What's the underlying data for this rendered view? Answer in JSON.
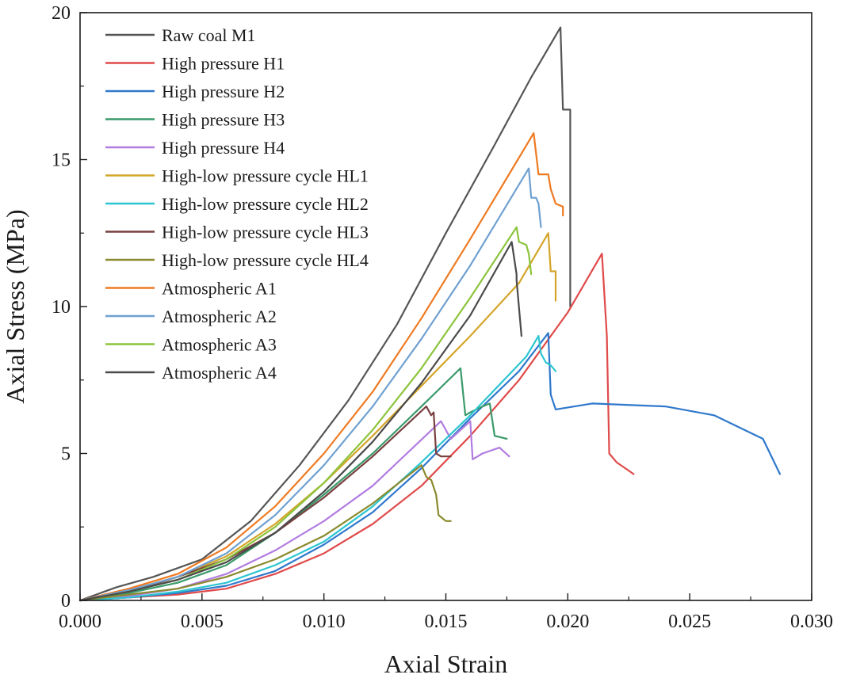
{
  "chart_data": {
    "type": "line",
    "title": "",
    "xlabel": "Axial Strain",
    "ylabel": "Axial Stress (MPa)",
    "xlim": [
      0.0,
      0.03
    ],
    "ylim": [
      0,
      20
    ],
    "x_ticks": [
      0.0,
      0.005,
      0.01,
      0.015,
      0.02,
      0.025,
      0.03
    ],
    "x_tick_labels": [
      "0.000",
      "0.005",
      "0.010",
      "0.015",
      "0.020",
      "0.025",
      "0.030"
    ],
    "y_ticks": [
      0,
      5,
      10,
      15,
      20
    ],
    "y_tick_labels": [
      "0",
      "5",
      "10",
      "15",
      "20"
    ],
    "grid": false,
    "legend_position": "top-left",
    "series": [
      {
        "name": "Raw coal M1",
        "color": "#555555",
        "x": [
          0,
          0.0015,
          0.003,
          0.005,
          0.007,
          0.009,
          0.011,
          0.013,
          0.015,
          0.017,
          0.0185,
          0.0197,
          0.0198,
          0.0198,
          0.0201,
          0.0201
        ],
        "y": [
          0,
          0.45,
          0.8,
          1.4,
          2.7,
          4.6,
          6.8,
          9.4,
          12.5,
          15.5,
          17.8,
          19.5,
          16.7,
          16.7,
          16.7,
          10.0
        ]
      },
      {
        "name": "High pressure H1",
        "color": "#e04a4a",
        "x": [
          0,
          0.002,
          0.004,
          0.006,
          0.008,
          0.01,
          0.012,
          0.014,
          0.016,
          0.018,
          0.02,
          0.0214,
          0.0216,
          0.0217,
          0.022,
          0.0227
        ],
        "y": [
          0,
          0.1,
          0.2,
          0.4,
          0.9,
          1.6,
          2.6,
          3.9,
          5.6,
          7.5,
          9.8,
          11.8,
          9.0,
          5.0,
          4.7,
          4.3
        ]
      },
      {
        "name": "High pressure H2",
        "color": "#2f78cc",
        "x": [
          0,
          0.002,
          0.004,
          0.006,
          0.008,
          0.01,
          0.012,
          0.014,
          0.016,
          0.018,
          0.0192,
          0.0193,
          0.0195,
          0.021,
          0.024,
          0.026,
          0.028,
          0.0287
        ],
        "y": [
          0,
          0.1,
          0.25,
          0.5,
          1.0,
          1.9,
          3.0,
          4.5,
          6.2,
          7.8,
          9.1,
          7.0,
          6.5,
          6.7,
          6.6,
          6.3,
          5.5,
          4.3
        ]
      },
      {
        "name": "High pressure H3",
        "color": "#3a9a6a",
        "x": [
          0,
          0.002,
          0.004,
          0.006,
          0.008,
          0.01,
          0.012,
          0.014,
          0.0156,
          0.0158,
          0.016,
          0.0165,
          0.0168,
          0.017,
          0.0175
        ],
        "y": [
          0,
          0.25,
          0.6,
          1.2,
          2.3,
          3.6,
          5.0,
          6.6,
          7.9,
          6.3,
          6.4,
          6.6,
          6.7,
          5.6,
          5.5
        ]
      },
      {
        "name": "High pressure H4",
        "color": "#b17ce0",
        "x": [
          0,
          0.002,
          0.004,
          0.006,
          0.008,
          0.01,
          0.012,
          0.0148,
          0.0152,
          0.016,
          0.0161,
          0.0165,
          0.0172,
          0.0176
        ],
        "y": [
          0,
          0.15,
          0.4,
          0.9,
          1.7,
          2.7,
          3.9,
          6.1,
          5.5,
          6.1,
          4.8,
          5.0,
          5.2,
          4.9
        ]
      },
      {
        "name": "High-low pressure cycle HL1",
        "color": "#d4a52a",
        "x": [
          0,
          0.002,
          0.004,
          0.006,
          0.008,
          0.01,
          0.012,
          0.014,
          0.016,
          0.018,
          0.0192,
          0.0193,
          0.0195,
          0.0195
        ],
        "y": [
          0,
          0.35,
          0.8,
          1.5,
          2.6,
          4.0,
          5.6,
          7.3,
          9.0,
          10.8,
          12.5,
          11.2,
          11.2,
          10.2
        ]
      },
      {
        "name": "High-low pressure cycle HL2",
        "color": "#2cc6d0",
        "x": [
          0,
          0.002,
          0.004,
          0.006,
          0.008,
          0.01,
          0.012,
          0.014,
          0.016,
          0.0183,
          0.0188,
          0.0189,
          0.0191,
          0.0193,
          0.0195
        ],
        "y": [
          0,
          0.1,
          0.3,
          0.6,
          1.2,
          2.0,
          3.2,
          4.7,
          6.3,
          8.3,
          9.0,
          8.4,
          8.1,
          8.0,
          7.8
        ]
      },
      {
        "name": "High-low pressure cycle HL3",
        "color": "#7a4040",
        "x": [
          0,
          0.002,
          0.004,
          0.006,
          0.008,
          0.01,
          0.012,
          0.0142,
          0.0144,
          0.0145,
          0.0146,
          0.0148,
          0.0152
        ],
        "y": [
          0,
          0.3,
          0.8,
          1.4,
          2.3,
          3.5,
          4.9,
          6.6,
          6.3,
          6.4,
          5.0,
          4.9,
          4.9
        ]
      },
      {
        "name": "High-low pressure cycle HL4",
        "color": "#8a8a2e",
        "x": [
          0,
          0.002,
          0.004,
          0.006,
          0.008,
          0.01,
          0.012,
          0.014,
          0.0142,
          0.0144,
          0.0146,
          0.0147,
          0.015,
          0.0152
        ],
        "y": [
          0,
          0.2,
          0.4,
          0.8,
          1.4,
          2.2,
          3.3,
          4.6,
          4.2,
          4.1,
          3.6,
          2.9,
          2.7,
          2.7
        ]
      },
      {
        "name": "Atmospheric A1",
        "color": "#ee7a22",
        "x": [
          0,
          0.002,
          0.004,
          0.006,
          0.008,
          0.01,
          0.012,
          0.014,
          0.016,
          0.0186,
          0.0188,
          0.0192,
          0.0193,
          0.0195,
          0.0198,
          0.0198
        ],
        "y": [
          0,
          0.4,
          0.9,
          1.8,
          3.2,
          5.0,
          7.1,
          9.6,
          12.3,
          15.9,
          14.5,
          14.5,
          14.0,
          13.5,
          13.4,
          13.1
        ]
      },
      {
        "name": "Atmospheric A2",
        "color": "#6fa0d0",
        "x": [
          0,
          0.002,
          0.004,
          0.006,
          0.008,
          0.01,
          0.012,
          0.014,
          0.016,
          0.0184,
          0.0185,
          0.0187,
          0.0188,
          0.0189
        ],
        "y": [
          0,
          0.35,
          0.8,
          1.6,
          2.9,
          4.6,
          6.6,
          8.9,
          11.4,
          14.7,
          13.7,
          13.7,
          13.5,
          12.7
        ]
      },
      {
        "name": "Atmospheric A3",
        "color": "#8cc43c",
        "x": [
          0,
          0.002,
          0.004,
          0.006,
          0.008,
          0.01,
          0.012,
          0.014,
          0.016,
          0.0179,
          0.018,
          0.0183,
          0.0184,
          0.0185
        ],
        "y": [
          0,
          0.3,
          0.7,
          1.4,
          2.5,
          4.0,
          5.8,
          7.9,
          10.3,
          12.7,
          12.2,
          12.1,
          11.8,
          11.1
        ]
      },
      {
        "name": "Atmospheric A4",
        "color": "#4a4a4a",
        "x": [
          0,
          0.002,
          0.004,
          0.006,
          0.008,
          0.01,
          0.012,
          0.014,
          0.016,
          0.0177,
          0.0179,
          0.0179,
          0.0181
        ],
        "y": [
          0,
          0.3,
          0.7,
          1.3,
          2.3,
          3.7,
          5.4,
          7.4,
          9.7,
          12.2,
          11.1,
          10.9,
          9.0
        ]
      }
    ]
  }
}
